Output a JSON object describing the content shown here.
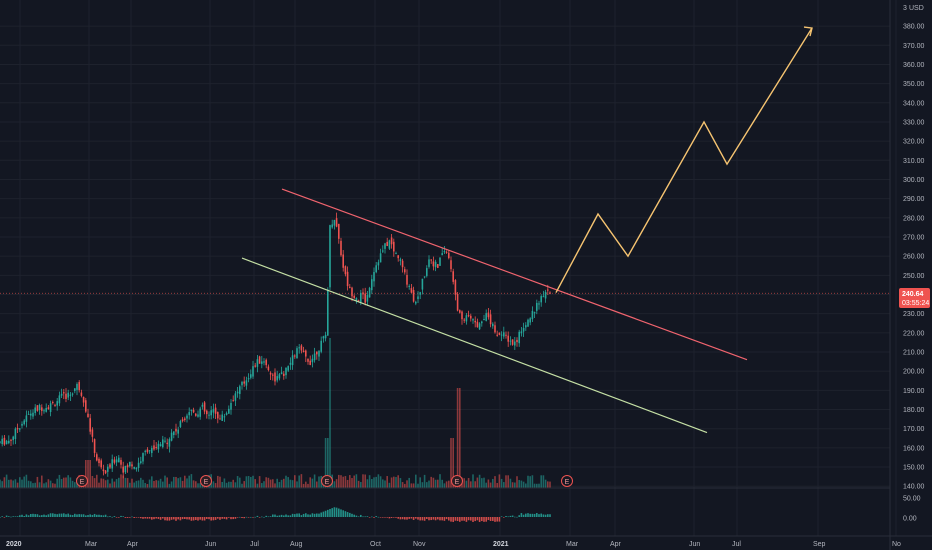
{
  "colors": {
    "background": "#131722",
    "grid": "#1e222d",
    "up": "#26a69a",
    "down": "#ef5350",
    "upper_trendline": "#f0646e",
    "lower_trendline": "#c5e0a5",
    "projection": "#f6c471",
    "price_tag": "#ef5350",
    "axis_text": "#b2b5be"
  },
  "price_axis": {
    "currency": "USD",
    "top_fragment": "3",
    "labels": [
      "380.00",
      "370.00",
      "360.00",
      "350.00",
      "340.00",
      "330.00",
      "320.00",
      "310.00",
      "300.00",
      "290.00",
      "280.00",
      "270.00",
      "260.00",
      "250.00",
      "240.00",
      "230.00",
      "220.00",
      "210.00",
      "200.00",
      "190.00",
      "180.00",
      "170.00",
      "160.00",
      "150.00",
      "140.00"
    ],
    "current_price": "240.64",
    "countdown": "03:55:24"
  },
  "oscillator_axis": {
    "labels": [
      "50.00",
      "0.00"
    ]
  },
  "time_axis": {
    "labels": [
      "2020",
      "Mar",
      "Apr",
      "Jun",
      "Jul",
      "Aug",
      "Oct",
      "Nov",
      "2021",
      "Mar",
      "Apr",
      "Jun",
      "Jul",
      "Sep",
      "No"
    ]
  },
  "earnings_markers": [
    {
      "label": "E",
      "state": "past"
    },
    {
      "label": "E",
      "state": "past"
    },
    {
      "label": "E",
      "state": "past"
    },
    {
      "label": "E",
      "state": "past"
    },
    {
      "label": "E",
      "state": "upcoming"
    }
  ],
  "chart_data": {
    "type": "candlestick",
    "ylim": [
      140,
      385
    ],
    "y_unit": "USD",
    "series": [
      {
        "name": "price",
        "points": [
          [
            0,
            163
          ],
          [
            10,
            164
          ],
          [
            20,
            172
          ],
          [
            30,
            178
          ],
          [
            40,
            181
          ],
          [
            50,
            182
          ],
          [
            60,
            186
          ],
          [
            70,
            188
          ],
          [
            78,
            193
          ],
          [
            84,
            185
          ],
          [
            88,
            175
          ],
          [
            92,
            165
          ],
          [
            96,
            155
          ],
          [
            100,
            150
          ],
          [
            106,
            147
          ],
          [
            112,
            152
          ],
          [
            118,
            156
          ],
          [
            124,
            148
          ],
          [
            130,
            152
          ],
          [
            136,
            150
          ],
          [
            142,
            155
          ],
          [
            148,
            160
          ],
          [
            154,
            158
          ],
          [
            160,
            162
          ],
          [
            166,
            163
          ],
          [
            172,
            168
          ],
          [
            178,
            170
          ],
          [
            184,
            176
          ],
          [
            190,
            180
          ],
          [
            196,
            178
          ],
          [
            202,
            181
          ],
          [
            208,
            176
          ],
          [
            214,
            180
          ],
          [
            220,
            175
          ],
          [
            226,
            178
          ],
          [
            232,
            185
          ],
          [
            238,
            190
          ],
          [
            244,
            194
          ],
          [
            250,
            199
          ],
          [
            256,
            204
          ],
          [
            262,
            206
          ],
          [
            268,
            202
          ],
          [
            274,
            196
          ],
          [
            280,
            197
          ],
          [
            286,
            200
          ],
          [
            292,
            206
          ],
          [
            298,
            212
          ],
          [
            304,
            208
          ],
          [
            310,
            205
          ],
          [
            316,
            210
          ],
          [
            322,
            215
          ],
          [
            326,
            219
          ],
          [
            330,
            275
          ],
          [
            334,
            281
          ],
          [
            338,
            272
          ],
          [
            342,
            258
          ],
          [
            346,
            248
          ],
          [
            350,
            242
          ],
          [
            354,
            240
          ],
          [
            358,
            238
          ],
          [
            362,
            240
          ],
          [
            366,
            236
          ],
          [
            370,
            246
          ],
          [
            374,
            253
          ],
          [
            378,
            258
          ],
          [
            382,
            262
          ],
          [
            386,
            266
          ],
          [
            390,
            268
          ],
          [
            394,
            262
          ],
          [
            398,
            260
          ],
          [
            402,
            255
          ],
          [
            406,
            248
          ],
          [
            410,
            244
          ],
          [
            414,
            237
          ],
          [
            418,
            238
          ],
          [
            422,
            246
          ],
          [
            426,
            254
          ],
          [
            430,
            260
          ],
          [
            434,
            256
          ],
          [
            438,
            254
          ],
          [
            442,
            262
          ],
          [
            446,
            263
          ],
          [
            450,
            256
          ],
          [
            454,
            245
          ],
          [
            458,
            232
          ],
          [
            462,
            226
          ],
          [
            466,
            230
          ],
          [
            470,
            228
          ],
          [
            474,
            225
          ],
          [
            478,
            224
          ],
          [
            482,
            228
          ],
          [
            486,
            230
          ],
          [
            490,
            227
          ],
          [
            494,
            223
          ],
          [
            498,
            220
          ],
          [
            502,
            219
          ],
          [
            506,
            218
          ],
          [
            510,
            216
          ],
          [
            514,
            214
          ],
          [
            518,
            218
          ],
          [
            522,
            223
          ],
          [
            526,
            226
          ],
          [
            530,
            228
          ],
          [
            534,
            232
          ],
          [
            538,
            235
          ],
          [
            542,
            238
          ],
          [
            546,
            240
          ],
          [
            550,
            240.64
          ]
        ]
      },
      {
        "name": "volume",
        "kind": "histogram"
      },
      {
        "name": "oscillator",
        "kind": "histogram",
        "ylim": [
          -40,
          70
        ]
      }
    ],
    "trendlines": [
      {
        "name": "upper",
        "from": {
          "t": 282,
          "y": 295
        },
        "to": {
          "t": 747,
          "y": 206
        }
      },
      {
        "name": "lower",
        "from": {
          "t": 242,
          "y": 259
        },
        "to": {
          "t": 707,
          "y": 168
        }
      }
    ],
    "projection": {
      "points": [
        {
          "t": 556,
          "y": 241
        },
        {
          "t": 598,
          "y": 282
        },
        {
          "t": 628,
          "y": 260
        },
        {
          "t": 704,
          "y": 330
        },
        {
          "t": 727,
          "y": 308
        },
        {
          "t": 812,
          "y": 379
        }
      ]
    }
  }
}
